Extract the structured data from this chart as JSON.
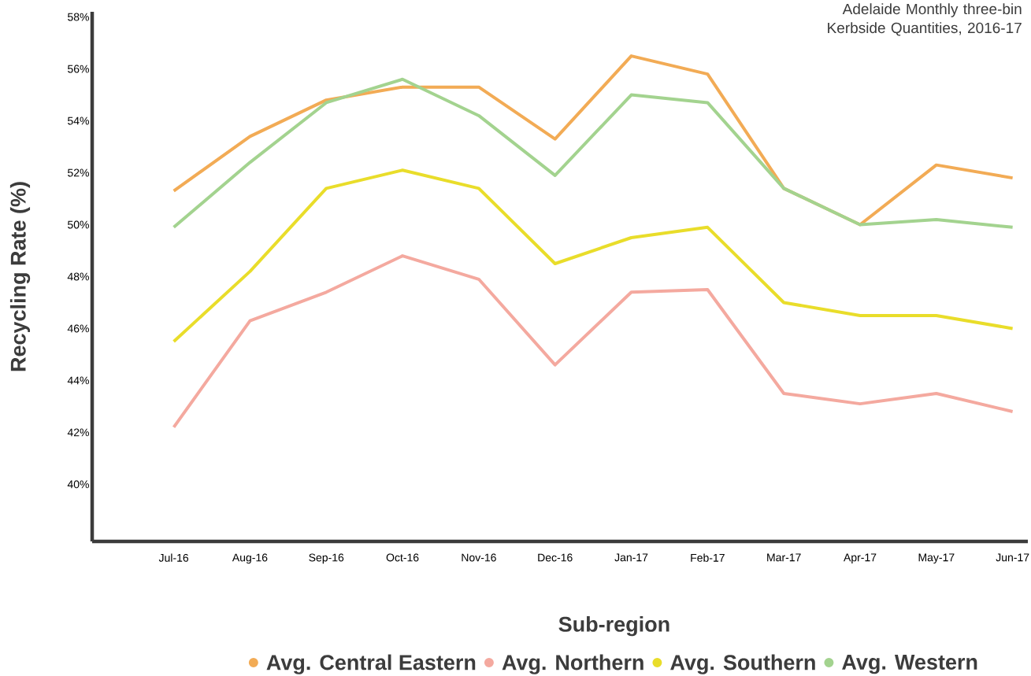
{
  "chart_data": {
    "type": "line",
    "title": "Adelaide Monthly three-bin Kerbside Quantities, 2016-17",
    "xlabel": "Sub-region",
    "ylabel": "Recycling Rate (%)",
    "categories": [
      "Jul-16",
      "Aug-16",
      "Sep-16",
      "Oct-16",
      "Nov-16",
      "Dec-16",
      "Jan-17",
      "Feb-17",
      "Mar-17",
      "Apr-17",
      "May-17",
      "Jun-17"
    ],
    "series": [
      {
        "name": "Avg. Central Eastern",
        "color": "#f2ab55",
        "values": [
          51.3,
          53.4,
          54.8,
          55.3,
          55.3,
          53.3,
          56.5,
          55.8,
          51.4,
          50.0,
          52.3,
          51.8
        ]
      },
      {
        "name": "Avg. Northern",
        "color": "#f4a99f",
        "values": [
          42.2,
          46.3,
          47.4,
          48.8,
          47.9,
          44.6,
          47.4,
          47.5,
          43.5,
          43.1,
          43.5,
          42.8
        ]
      },
      {
        "name": "Avg. Southern",
        "color": "#e9dd2a",
        "values": [
          45.5,
          48.2,
          51.4,
          52.1,
          51.4,
          48.5,
          49.5,
          49.9,
          47.0,
          46.5,
          46.5,
          46.0
        ]
      },
      {
        "name": "Avg. Western",
        "color": "#a3d38f",
        "values": [
          49.9,
          52.4,
          54.7,
          55.6,
          54.2,
          51.9,
          55.0,
          54.7,
          51.4,
          50.0,
          50.2,
          49.9
        ]
      }
    ],
    "ylim": [
      37.8,
      58.2
    ],
    "yticks": [
      {
        "value": 40,
        "label": "40%"
      },
      {
        "value": 42,
        "label": "42%"
      },
      {
        "value": 44,
        "label": "44%"
      },
      {
        "value": 46,
        "label": "46%"
      },
      {
        "value": 48,
        "label": "48%"
      },
      {
        "value": 50,
        "label": "50%"
      },
      {
        "value": 52,
        "label": "52%"
      },
      {
        "value": 54,
        "label": "54%"
      },
      {
        "value": 56,
        "label": "56%"
      },
      {
        "value": 58,
        "label": "58%"
      }
    ],
    "grid": false,
    "legend": "bottom"
  }
}
